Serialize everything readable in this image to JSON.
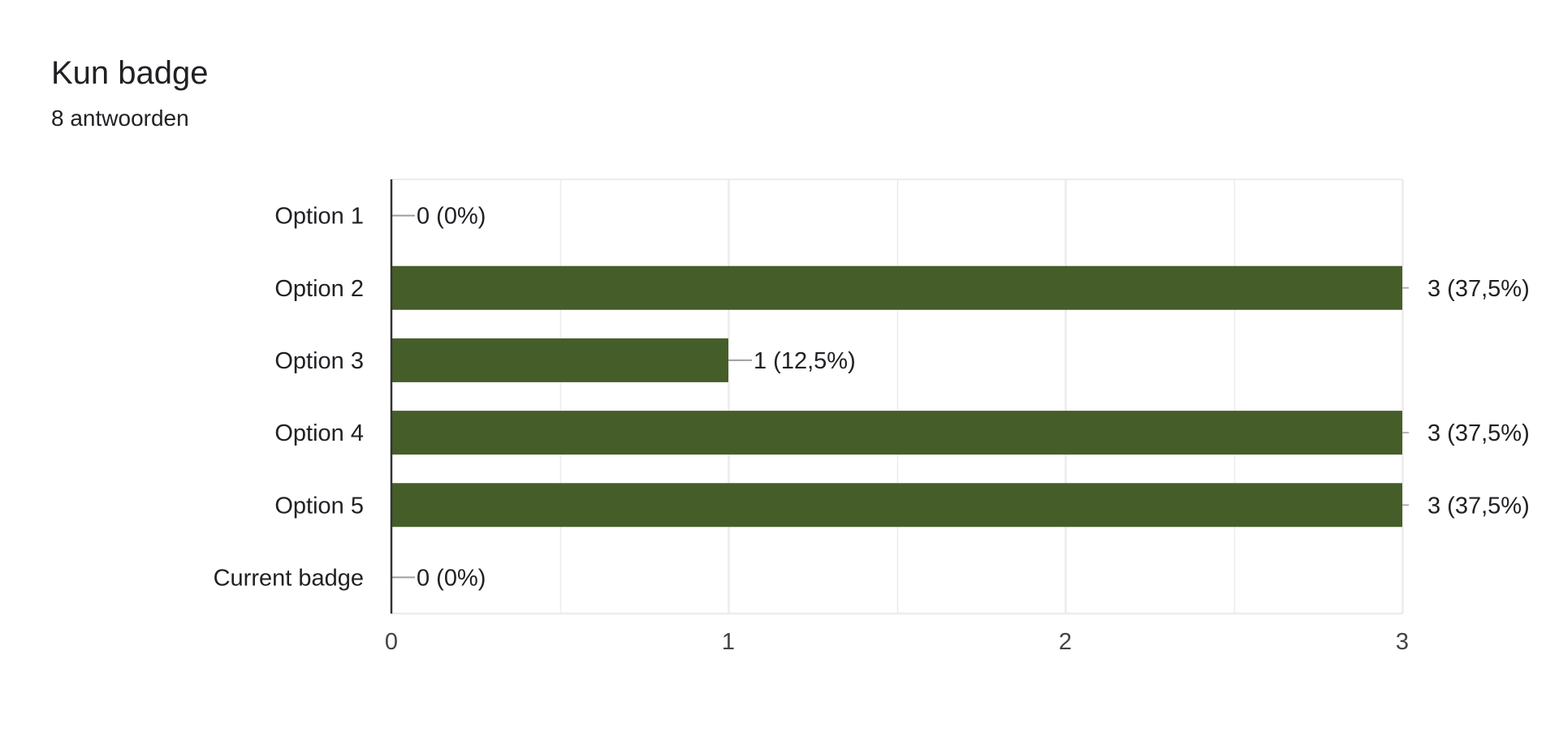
{
  "question": {
    "title": "Kun badge",
    "response_count": "8 antwoorden"
  },
  "colors": {
    "bar": "#455e29",
    "grid": "#ececec",
    "axis": "#333333",
    "leader": "#9e9e9e",
    "text": "#202124",
    "tick_text": "#444444"
  },
  "chart_data": {
    "type": "bar",
    "orientation": "horizontal",
    "categories": [
      "Option 1",
      "Option 2",
      "Option 3",
      "Option 4",
      "Option 5",
      "Current badge"
    ],
    "values": [
      0,
      3,
      1,
      3,
      3,
      0
    ],
    "data_labels": [
      "0 (0%)",
      "3 (37,5%)",
      "1 (12,5%)",
      "3 (37,5%)",
      "3 (37,5%)",
      "0 (0%)"
    ],
    "xlim": [
      0,
      3
    ],
    "x_ticks": [
      0,
      1,
      2,
      3
    ],
    "x_tick_labels": [
      "0",
      "1",
      "2",
      "3"
    ],
    "grid": true,
    "legend": "none"
  }
}
